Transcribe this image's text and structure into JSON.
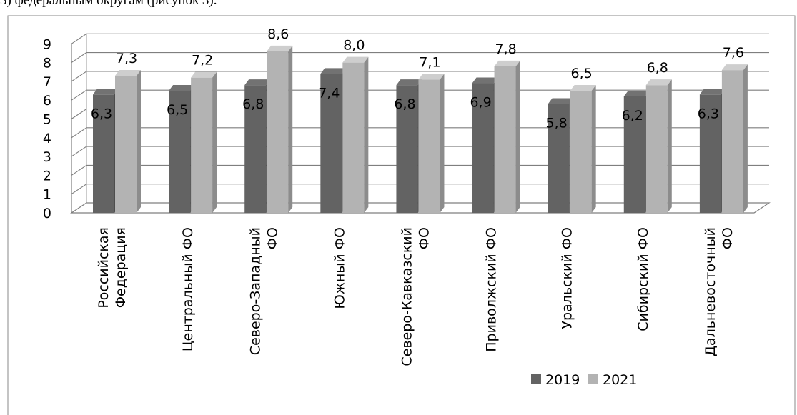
{
  "caption": "3) федеральным округам (рисунок 3).",
  "chart_data": {
    "type": "bar",
    "categories": [
      [
        "Российская",
        "Федерация"
      ],
      [
        "Центральный ФО"
      ],
      [
        "Северо-Западный",
        "ФО"
      ],
      [
        "Южный ФО"
      ],
      [
        "Северо-Кавказский",
        "ФО"
      ],
      [
        "Приволжский ФО"
      ],
      [
        "Уральский ФО"
      ],
      [
        "Сибирский ФО"
      ],
      [
        "Дальневосточный",
        "ФО"
      ]
    ],
    "series": [
      {
        "name": "2019",
        "values": [
          6.3,
          6.5,
          6.8,
          7.4,
          6.8,
          6.9,
          5.8,
          6.2,
          6.3
        ],
        "labels": [
          "6,3",
          "6,5",
          "6,8",
          "7,4",
          "6,8",
          "6,9",
          "5,8",
          "6,2",
          "6,3"
        ],
        "color": "#636363"
      },
      {
        "name": "2021",
        "values": [
          7.3,
          7.2,
          8.6,
          8.0,
          7.1,
          7.8,
          6.5,
          6.8,
          7.6
        ],
        "labels": [
          "7,3",
          "7,2",
          "8,6",
          "8,0",
          "7,1",
          "7,8",
          "6,5",
          "6,8",
          "7,6"
        ],
        "color": "#b3b3b3"
      }
    ],
    "yticks": [
      "0",
      "1",
      "2",
      "3",
      "4",
      "5",
      "6",
      "7",
      "8",
      "9"
    ],
    "ylim": [
      0,
      9
    ],
    "grid": true,
    "legend_position": "bottom-right"
  }
}
